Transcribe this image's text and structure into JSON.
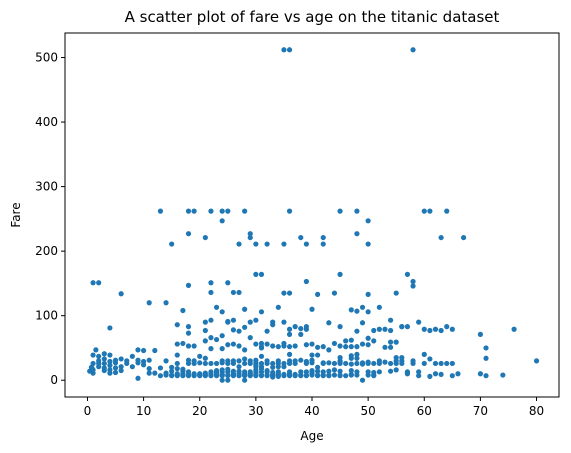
{
  "chart_data": {
    "type": "scatter",
    "title": "A scatter plot of fare vs age on the titanic dataset",
    "xlabel": "Age",
    "ylabel": "Fare",
    "xlim": [
      -4,
      84
    ],
    "ylim": [
      -26,
      538
    ],
    "xticks": [
      0,
      10,
      20,
      30,
      40,
      50,
      60,
      70,
      80
    ],
    "yticks": [
      0,
      100,
      200,
      300,
      400,
      500
    ],
    "grid": false,
    "point_color": "#1f77b4",
    "points": [
      [
        35,
        512
      ],
      [
        36,
        512
      ],
      [
        58,
        512
      ],
      [
        13,
        262
      ],
      [
        18,
        262
      ],
      [
        19,
        262
      ],
      [
        22,
        262
      ],
      [
        24,
        262
      ],
      [
        25,
        262
      ],
      [
        28,
        262
      ],
      [
        36,
        262
      ],
      [
        45,
        262
      ],
      [
        48,
        262
      ],
      [
        60,
        262
      ],
      [
        61,
        262
      ],
      [
        64,
        262
      ],
      [
        24,
        247
      ],
      [
        50,
        247
      ],
      [
        48,
        227
      ],
      [
        18,
        227
      ],
      [
        29,
        227
      ],
      [
        15,
        211
      ],
      [
        27,
        211
      ],
      [
        30,
        211
      ],
      [
        32,
        211
      ],
      [
        35,
        211
      ],
      [
        39,
        211
      ],
      [
        42,
        211
      ],
      [
        50,
        211
      ],
      [
        21,
        221
      ],
      [
        29,
        221
      ],
      [
        38,
        221
      ],
      [
        42,
        221
      ],
      [
        63,
        221
      ],
      [
        67,
        221
      ],
      [
        1,
        151
      ],
      [
        2,
        151
      ],
      [
        25,
        151
      ],
      [
        22,
        151
      ],
      [
        18,
        147
      ],
      [
        39,
        153
      ],
      [
        45,
        164
      ],
      [
        57,
        164
      ],
      [
        58,
        153
      ],
      [
        58,
        146
      ],
      [
        30,
        164
      ],
      [
        31,
        164
      ],
      [
        35,
        135
      ],
      [
        36,
        135
      ],
      [
        44,
        135
      ],
      [
        41,
        133
      ],
      [
        50,
        133
      ],
      [
        6,
        134
      ],
      [
        11,
        120
      ],
      [
        14,
        120
      ],
      [
        22,
        136
      ],
      [
        26,
        136
      ],
      [
        27,
        136
      ],
      [
        23,
        113
      ],
      [
        34,
        113
      ],
      [
        40,
        110
      ],
      [
        49,
        113
      ],
      [
        52,
        113
      ],
      [
        55,
        135
      ],
      [
        4,
        81
      ],
      [
        16,
        86
      ],
      [
        18,
        83
      ],
      [
        17,
        108
      ],
      [
        24,
        106
      ],
      [
        21,
        90
      ],
      [
        22,
        93
      ],
      [
        25,
        90
      ],
      [
        26,
        93
      ],
      [
        28,
        110
      ],
      [
        31,
        106
      ],
      [
        33,
        86
      ],
      [
        33,
        90
      ],
      [
        35,
        90
      ],
      [
        36,
        79
      ],
      [
        39,
        83
      ],
      [
        43,
        89
      ],
      [
        47,
        109
      ],
      [
        48,
        107
      ],
      [
        50,
        106
      ],
      [
        51,
        77
      ],
      [
        53,
        79
      ],
      [
        54,
        93
      ],
      [
        56,
        83
      ],
      [
        57,
        83
      ],
      [
        59,
        90
      ],
      [
        60,
        79
      ],
      [
        61,
        77
      ],
      [
        62,
        79
      ],
      [
        63,
        77
      ],
      [
        64,
        83
      ],
      [
        65,
        79
      ],
      [
        70,
        71
      ],
      [
        71,
        50
      ],
      [
        71,
        34
      ],
      [
        76,
        79
      ],
      [
        80,
        30
      ],
      [
        74,
        8
      ],
      [
        70,
        10
      ],
      [
        71,
        7
      ],
      [
        0.4,
        14
      ],
      [
        0.7,
        20
      ],
      [
        0.8,
        19
      ],
      [
        1,
        11
      ],
      [
        1,
        16
      ],
      [
        1,
        26
      ],
      [
        1,
        39
      ],
      [
        1.5,
        47
      ],
      [
        2,
        21
      ],
      [
        2,
        26
      ],
      [
        2,
        30
      ],
      [
        2,
        37
      ],
      [
        3,
        15
      ],
      [
        3,
        19
      ],
      [
        3,
        26
      ],
      [
        3,
        33
      ],
      [
        3,
        41
      ],
      [
        4,
        11
      ],
      [
        4,
        16
      ],
      [
        4,
        23
      ],
      [
        4,
        29
      ],
      [
        4,
        39
      ],
      [
        5,
        12
      ],
      [
        5,
        19
      ],
      [
        5,
        27
      ],
      [
        5,
        31
      ],
      [
        6,
        15
      ],
      [
        6,
        21
      ],
      [
        6,
        33
      ],
      [
        7,
        26
      ],
      [
        7,
        30
      ],
      [
        8,
        21
      ],
      [
        8,
        37
      ],
      [
        9,
        3
      ],
      [
        9,
        27
      ],
      [
        9,
        31
      ],
      [
        9,
        47
      ],
      [
        10,
        24
      ],
      [
        10,
        29
      ],
      [
        10,
        46
      ],
      [
        11,
        11
      ],
      [
        11,
        18
      ],
      [
        11,
        31
      ],
      [
        12,
        11
      ],
      [
        12,
        46
      ],
      [
        13,
        7
      ],
      [
        13,
        19
      ],
      [
        14,
        8
      ],
      [
        14,
        11
      ],
      [
        14,
        30
      ],
      [
        15,
        7
      ],
      [
        15,
        8
      ],
      [
        15,
        14
      ],
      [
        15,
        20
      ],
      [
        16,
        7
      ],
      [
        16,
        8
      ],
      [
        16,
        10
      ],
      [
        16,
        18
      ],
      [
        16,
        26
      ],
      [
        16,
        39
      ],
      [
        16,
        56
      ],
      [
        17,
        7
      ],
      [
        17,
        8
      ],
      [
        17,
        10
      ],
      [
        17,
        14
      ],
      [
        17,
        17
      ],
      [
        17,
        57
      ],
      [
        18,
        7
      ],
      [
        18,
        8
      ],
      [
        18,
        9
      ],
      [
        18,
        13
      ],
      [
        18,
        26
      ],
      [
        18,
        31
      ],
      [
        18,
        53
      ],
      [
        18,
        73
      ],
      [
        19,
        7
      ],
      [
        19,
        8
      ],
      [
        19,
        10
      ],
      [
        19,
        26
      ],
      [
        19,
        30
      ],
      [
        19,
        53
      ],
      [
        20,
        7
      ],
      [
        20,
        8
      ],
      [
        20,
        9
      ],
      [
        20,
        10
      ],
      [
        20,
        27
      ],
      [
        20,
        37
      ],
      [
        21,
        7
      ],
      [
        21,
        8
      ],
      [
        21,
        11
      ],
      [
        21,
        26
      ],
      [
        21,
        34
      ],
      [
        21,
        61
      ],
      [
        21,
        77
      ],
      [
        22,
        7
      ],
      [
        22,
        8
      ],
      [
        22,
        9
      ],
      [
        22,
        10
      ],
      [
        22,
        13
      ],
      [
        22,
        26
      ],
      [
        22,
        49
      ],
      [
        22,
        66
      ],
      [
        23,
        7
      ],
      [
        23,
        8
      ],
      [
        23,
        10
      ],
      [
        23,
        13
      ],
      [
        23,
        15
      ],
      [
        23,
        26
      ],
      [
        23,
        63
      ],
      [
        24,
        0
      ],
      [
        24,
        7
      ],
      [
        24,
        8
      ],
      [
        24,
        9
      ],
      [
        24,
        13
      ],
      [
        24,
        16
      ],
      [
        24,
        27
      ],
      [
        24,
        30
      ],
      [
        24,
        49
      ],
      [
        24,
        69
      ],
      [
        25,
        0
      ],
      [
        25,
        7
      ],
      [
        25,
        8
      ],
      [
        25,
        13
      ],
      [
        25,
        17
      ],
      [
        25,
        26
      ],
      [
        25,
        30
      ],
      [
        25,
        55
      ],
      [
        25,
        91
      ],
      [
        26,
        7
      ],
      [
        26,
        8
      ],
      [
        26,
        10
      ],
      [
        26,
        14
      ],
      [
        26,
        26
      ],
      [
        26,
        30
      ],
      [
        26,
        56
      ],
      [
        26,
        78
      ],
      [
        27,
        7
      ],
      [
        27,
        8
      ],
      [
        27,
        10
      ],
      [
        27,
        14
      ],
      [
        27,
        21
      ],
      [
        27,
        30
      ],
      [
        27,
        53
      ],
      [
        27,
        76
      ],
      [
        28,
        0
      ],
      [
        28,
        7
      ],
      [
        28,
        8
      ],
      [
        28,
        10
      ],
      [
        28,
        13
      ],
      [
        28,
        26
      ],
      [
        28,
        33
      ],
      [
        28,
        47
      ],
      [
        28,
        82
      ],
      [
        29,
        7
      ],
      [
        29,
        8
      ],
      [
        29,
        10
      ],
      [
        29,
        13
      ],
      [
        29,
        26
      ],
      [
        29,
        30
      ],
      [
        29,
        66
      ],
      [
        29,
        90
      ],
      [
        30,
        7
      ],
      [
        30,
        8
      ],
      [
        30,
        10
      ],
      [
        30,
        13
      ],
      [
        30,
        16
      ],
      [
        30,
        21
      ],
      [
        30,
        24
      ],
      [
        30,
        27
      ],
      [
        30,
        31
      ],
      [
        30,
        56
      ],
      [
        30,
        93
      ],
      [
        31,
        7
      ],
      [
        31,
        8
      ],
      [
        31,
        13
      ],
      [
        31,
        18
      ],
      [
        31,
        21
      ],
      [
        31,
        26
      ],
      [
        31,
        37
      ],
      [
        31,
        50
      ],
      [
        31,
        52
      ],
      [
        31,
        57
      ],
      [
        32,
        7
      ],
      [
        32,
        8
      ],
      [
        32,
        13
      ],
      [
        32,
        15
      ],
      [
        32,
        26
      ],
      [
        32,
        30
      ],
      [
        32,
        56
      ],
      [
        32,
        76
      ],
      [
        33,
        5
      ],
      [
        33,
        7
      ],
      [
        33,
        8
      ],
      [
        33,
        9
      ],
      [
        33,
        12
      ],
      [
        33,
        20
      ],
      [
        33,
        26
      ],
      [
        33,
        53
      ],
      [
        34,
        6
      ],
      [
        34,
        8
      ],
      [
        34,
        10
      ],
      [
        34,
        13
      ],
      [
        34,
        21
      ],
      [
        34,
        26
      ],
      [
        34,
        30
      ],
      [
        34,
        52
      ],
      [
        35,
        7
      ],
      [
        35,
        8
      ],
      [
        35,
        9
      ],
      [
        35,
        21
      ],
      [
        35,
        26
      ],
      [
        35,
        53
      ],
      [
        35,
        57
      ],
      [
        36,
        7
      ],
      [
        36,
        8
      ],
      [
        36,
        10
      ],
      [
        36,
        13
      ],
      [
        36,
        26
      ],
      [
        36,
        30
      ],
      [
        36,
        40
      ],
      [
        36,
        52
      ],
      [
        36,
        71
      ],
      [
        37,
        7
      ],
      [
        37,
        9
      ],
      [
        37,
        26
      ],
      [
        37,
        30
      ],
      [
        37,
        53
      ],
      [
        37,
        83
      ],
      [
        38,
        7
      ],
      [
        38,
        8
      ],
      [
        38,
        13
      ],
      [
        38,
        31
      ],
      [
        38,
        71
      ],
      [
        38,
        80
      ],
      [
        39,
        7
      ],
      [
        39,
        8
      ],
      [
        39,
        13
      ],
      [
        39,
        26
      ],
      [
        39,
        29
      ],
      [
        39,
        55
      ],
      [
        39,
        79
      ],
      [
        40,
        8
      ],
      [
        40,
        10
      ],
      [
        40,
        13
      ],
      [
        40,
        15
      ],
      [
        40,
        27
      ],
      [
        40,
        31
      ],
      [
        40,
        39
      ],
      [
        40,
        56
      ],
      [
        41,
        7
      ],
      [
        41,
        8
      ],
      [
        41,
        14
      ],
      [
        41,
        20
      ],
      [
        41,
        39
      ],
      [
        41,
        51
      ],
      [
        42,
        7
      ],
      [
        42,
        8
      ],
      [
        42,
        13
      ],
      [
        42,
        26
      ],
      [
        42,
        27
      ],
      [
        42,
        52
      ],
      [
        43,
        7
      ],
      [
        43,
        8
      ],
      [
        43,
        14
      ],
      [
        43,
        27
      ],
      [
        43,
        47
      ],
      [
        44,
        8
      ],
      [
        44,
        16
      ],
      [
        44,
        26
      ],
      [
        44,
        57
      ],
      [
        45,
        7
      ],
      [
        45,
        8
      ],
      [
        45,
        14
      ],
      [
        45,
        26
      ],
      [
        45,
        28
      ],
      [
        45,
        30
      ],
      [
        45,
        35
      ],
      [
        45,
        53
      ],
      [
        45,
        83
      ],
      [
        46,
        7
      ],
      [
        46,
        26
      ],
      [
        46,
        52
      ],
      [
        46,
        61
      ],
      [
        47,
        8
      ],
      [
        47,
        9
      ],
      [
        47,
        15
      ],
      [
        47,
        25
      ],
      [
        47,
        34
      ],
      [
        47,
        38
      ],
      [
        47,
        52
      ],
      [
        47,
        62
      ],
      [
        48,
        8
      ],
      [
        48,
        13
      ],
      [
        48,
        26
      ],
      [
        48,
        34
      ],
      [
        48,
        40
      ],
      [
        48,
        52
      ],
      [
        48,
        76
      ],
      [
        49,
        0
      ],
      [
        49,
        25
      ],
      [
        49,
        27
      ],
      [
        49,
        56
      ],
      [
        49,
        89
      ],
      [
        50,
        8
      ],
      [
        50,
        13
      ],
      [
        50,
        26
      ],
      [
        50,
        28
      ],
      [
        50,
        55
      ],
      [
        50,
        65
      ],
      [
        51,
        7
      ],
      [
        51,
        8
      ],
      [
        51,
        12
      ],
      [
        51,
        26
      ],
      [
        51,
        61
      ],
      [
        52,
        13
      ],
      [
        52,
        26
      ],
      [
        52,
        30
      ],
      [
        52,
        79
      ],
      [
        53,
        28
      ],
      [
        53,
        51
      ],
      [
        54,
        14
      ],
      [
        54,
        26
      ],
      [
        54,
        51
      ],
      [
        54,
        59
      ],
      [
        54,
        77
      ],
      [
        55,
        16
      ],
      [
        55,
        26
      ],
      [
        55,
        30
      ],
      [
        55,
        35
      ],
      [
        55,
        59
      ],
      [
        56,
        26
      ],
      [
        56,
        30
      ],
      [
        56,
        35
      ],
      [
        56,
        83
      ],
      [
        57,
        10
      ],
      [
        57,
        12
      ],
      [
        57,
        13
      ],
      [
        58,
        26
      ],
      [
        58,
        30
      ],
      [
        59,
        7
      ],
      [
        59,
        13
      ],
      [
        60,
        26
      ],
      [
        60,
        40
      ],
      [
        61,
        6
      ],
      [
        61,
        33
      ],
      [
        62,
        10
      ],
      [
        62,
        26
      ],
      [
        63,
        9
      ],
      [
        63,
        26
      ],
      [
        64,
        26
      ],
      [
        65,
        7
      ],
      [
        65,
        26
      ],
      [
        66,
        10
      ]
    ]
  }
}
